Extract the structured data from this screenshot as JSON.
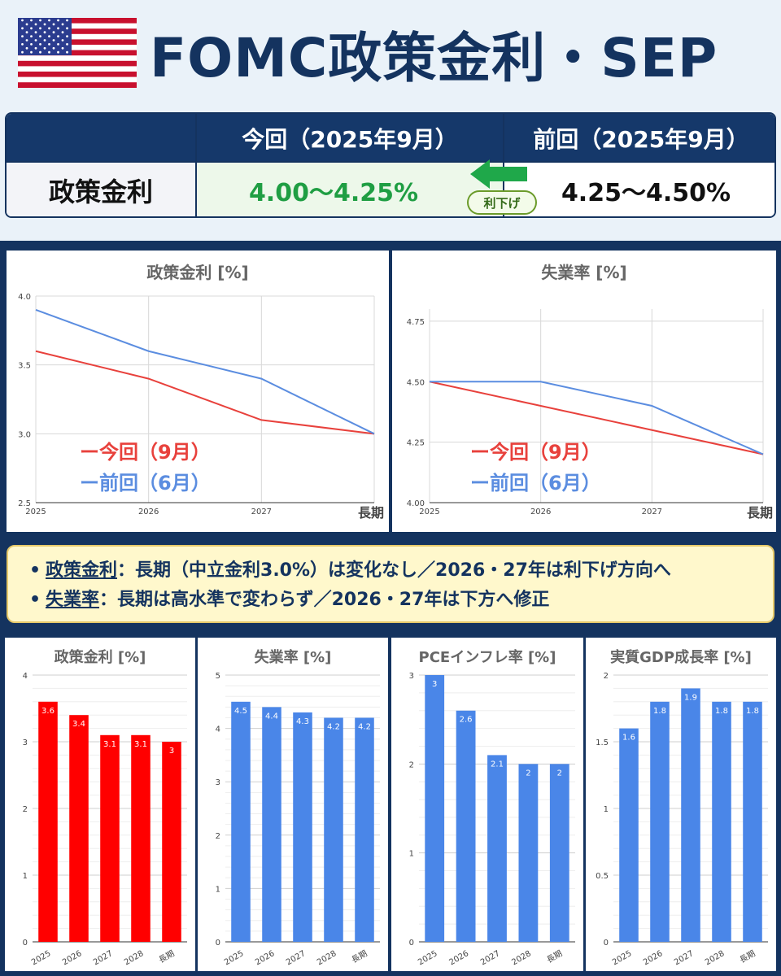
{
  "header": {
    "title": "FOMC政策金利・SEP",
    "flag_icon": "us-flag-icon"
  },
  "rate_table": {
    "col_current": "今回（2025年9月）",
    "col_previous": "前回（2025年9月）",
    "row_label": "政策金利",
    "current_value": "4.00〜4.25%",
    "previous_value": "4.25〜4.50%",
    "change_badge": "利下げ",
    "arrow_icon": "left-arrow-icon",
    "colors": {
      "header": "#15386a",
      "current": "#1f9e43",
      "arrow": "#1fa84a"
    }
  },
  "chart_data": [
    {
      "type": "line",
      "title": "政策金利 [%]",
      "x": [
        "2025",
        "2026",
        "2027",
        "長期"
      ],
      "ylim": [
        2.5,
        4.0
      ],
      "yticks": [
        "2.5",
        "3.0",
        "3.5",
        "4.0"
      ],
      "grid": true,
      "series": [
        {
          "name": "ー今回（9月）",
          "values": [
            3.6,
            3.4,
            3.1,
            3.0
          ],
          "color": "#e8413c"
        },
        {
          "name": "ー前回（6月）",
          "values": [
            3.9,
            3.6,
            3.4,
            3.0
          ],
          "color": "#5b8de0"
        }
      ]
    },
    {
      "type": "line",
      "title": "失業率 [%]",
      "x": [
        "2025",
        "2026",
        "2027",
        "長期"
      ],
      "ylim": [
        4.0,
        4.8
      ],
      "yticks": [
        "4.00",
        "4.25",
        "4.50",
        "4.75"
      ],
      "grid": true,
      "series": [
        {
          "name": "ー今回（9月）",
          "values": [
            4.5,
            4.4,
            4.3,
            4.2
          ],
          "color": "#e8413c"
        },
        {
          "name": "ー前回（6月）",
          "values": [
            4.5,
            4.5,
            4.4,
            4.2
          ],
          "color": "#5b8de0"
        }
      ]
    },
    {
      "type": "bar",
      "title": "政策金利 [%]",
      "categories": [
        "2025",
        "2026",
        "2027",
        "2028",
        "長期"
      ],
      "values": [
        3.6,
        3.4,
        3.1,
        3.1,
        3.0
      ],
      "labels": [
        "3.6",
        "3.4",
        "3.1",
        "3.1",
        "3"
      ],
      "ylim": [
        0,
        4
      ],
      "yticks": [
        "0",
        "1",
        "2",
        "3",
        "4"
      ],
      "color": "#ff0000"
    },
    {
      "type": "bar",
      "title": "失業率 [%]",
      "categories": [
        "2025",
        "2026",
        "2027",
        "2028",
        "長期"
      ],
      "values": [
        4.5,
        4.4,
        4.3,
        4.2,
        4.2
      ],
      "labels": [
        "4.5",
        "4.4",
        "4.3",
        "4.2",
        "4.2"
      ],
      "ylim": [
        0,
        5
      ],
      "yticks": [
        "0",
        "1",
        "2",
        "3",
        "4",
        "5"
      ],
      "color": "#4a86e8"
    },
    {
      "type": "bar",
      "title": "PCEインフレ率 [%]",
      "categories": [
        "2025",
        "2026",
        "2027",
        "2028",
        "長期"
      ],
      "values": [
        3.0,
        2.6,
        2.1,
        2.0,
        2.0
      ],
      "labels": [
        "3",
        "2.6",
        "2.1",
        "2",
        "2"
      ],
      "ylim": [
        0,
        3
      ],
      "yticks": [
        "0",
        "1",
        "2",
        "3"
      ],
      "color": "#4a86e8"
    },
    {
      "type": "bar",
      "title": "実質GDP成長率 [%]",
      "categories": [
        "2025",
        "2026",
        "2027",
        "2028",
        "長期"
      ],
      "values": [
        1.6,
        1.8,
        1.9,
        1.8,
        1.8
      ],
      "labels": [
        "1.6",
        "1.8",
        "1.9",
        "1.8",
        "1.8"
      ],
      "ylim": [
        0,
        2
      ],
      "yticks": [
        "0",
        "0.5",
        "1",
        "1.5",
        "2"
      ],
      "color": "#4a86e8"
    }
  ],
  "notes": [
    {
      "term": "政策金利",
      "text": "：長期（中立金利3.0%）は変化なし／2026・27年は利下げ方向へ"
    },
    {
      "term": "失業率",
      "text": "：長期は高水準で変わらず／2026・27年は下方へ修正"
    }
  ]
}
